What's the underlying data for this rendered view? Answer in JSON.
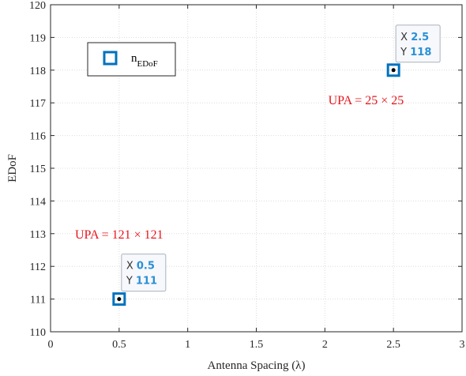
{
  "chart_data": {
    "type": "scatter",
    "xlabel": "Antenna Spacing (λ)",
    "ylabel": "EDoF",
    "xlim": [
      0,
      3
    ],
    "ylim": [
      110,
      120
    ],
    "xticks": [
      0,
      0.5,
      1,
      1.5,
      2,
      2.5,
      3
    ],
    "xtick_labels": [
      "0",
      "0.5",
      "1",
      "1.5",
      "2",
      "2.5",
      "3"
    ],
    "yticks": [
      110,
      111,
      112,
      113,
      114,
      115,
      116,
      117,
      118,
      119,
      120
    ],
    "ytick_labels": [
      "110",
      "111",
      "112",
      "113",
      "114",
      "115",
      "116",
      "117",
      "118",
      "119",
      "120"
    ],
    "grid": true,
    "legend_position": "top-left",
    "series": [
      {
        "name": "n",
        "name_subscript": "EDoF",
        "marker": "square",
        "color": "#0072bd",
        "x": [
          0.5,
          2.5
        ],
        "y": [
          111,
          118
        ]
      }
    ],
    "annotations": [
      {
        "text": "UPA = 121 × 121",
        "x": 0.5,
        "y": 113,
        "color": "#e8141c"
      },
      {
        "text": "UPA = 25 × 25",
        "x": 2.3,
        "y": 117.1,
        "color": "#e8141c"
      }
    ],
    "datatips": [
      {
        "x_label": "X",
        "x_value": "0.5",
        "y_label": "Y",
        "y_value": "111"
      },
      {
        "x_label": "X",
        "x_value": "2.5",
        "y_label": "Y",
        "y_value": "118"
      }
    ]
  }
}
